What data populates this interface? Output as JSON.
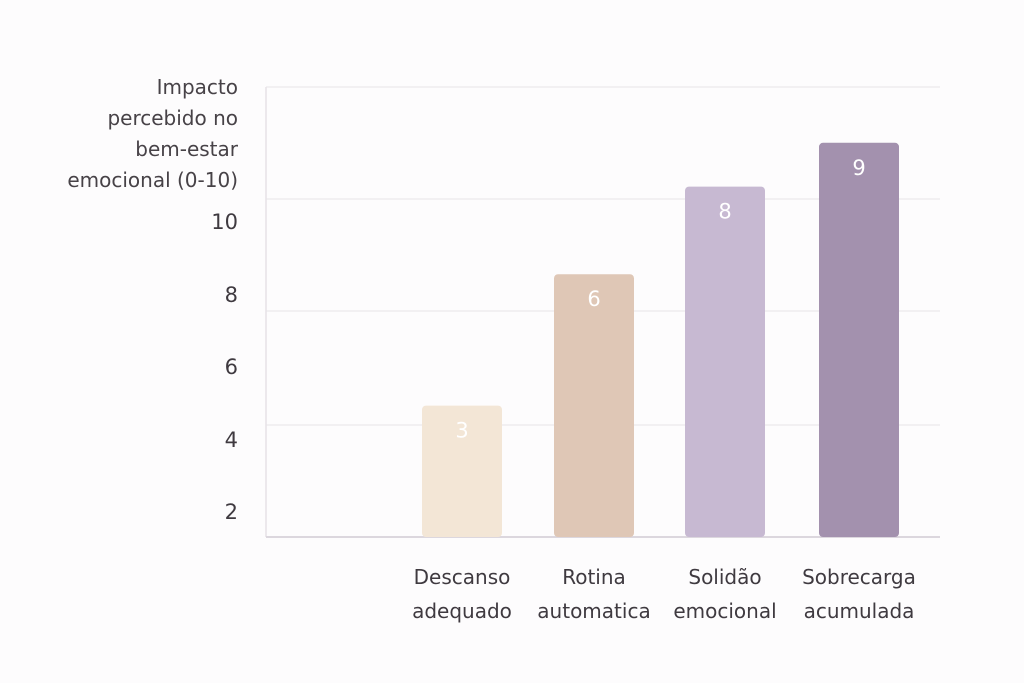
{
  "chart_data": {
    "type": "bar",
    "title": "",
    "ylabel": "Impacto\npercebido no\nbem-estar\nemocional (0-10)",
    "xlabel": "",
    "categories": [
      "Descanso\nadequado",
      "Rotina\nautomatica",
      "Solidão\nemocional",
      "Sobrecarga\nacumulada"
    ],
    "values": [
      3,
      6,
      8,
      9
    ],
    "data_labels": [
      "3",
      "6",
      "8",
      "9"
    ],
    "colors": [
      "#f3e6d6",
      "#dfc7b6",
      "#c7b9d2",
      "#a391ae"
    ],
    "yticks": [
      2,
      4,
      6,
      8,
      10
    ],
    "ytick_labels": [
      "2",
      "4",
      "6",
      "8",
      "10"
    ],
    "grid": true,
    "legend": "none"
  }
}
